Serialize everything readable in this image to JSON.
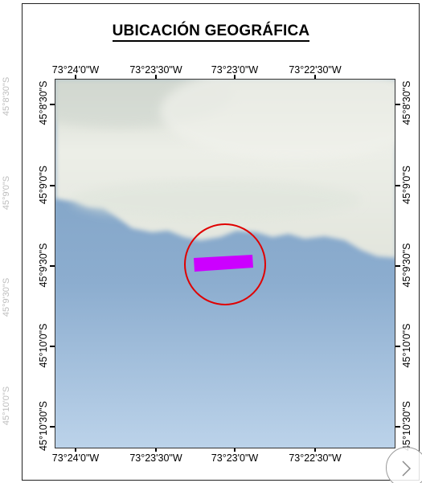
{
  "map": {
    "title": "UBICACIÓN GEOGRÁFICA",
    "longitude_labels": [
      "73°24'0\"W",
      "73°23'30\"W",
      "73°23'0\"W",
      "73°22'30\"W"
    ],
    "latitude_labels": [
      "45°8'30\"S",
      "45°9'0\"S",
      "45°9'30\"S",
      "45°10'0\"S",
      "45°10'30\"S"
    ],
    "colors": {
      "land": "#e9ebe3",
      "water": "#7fa2c4",
      "marker_circle": "#e00000",
      "site": "#cc00ff"
    }
  },
  "viewer": {
    "next_icon": "chevron-right-icon"
  }
}
